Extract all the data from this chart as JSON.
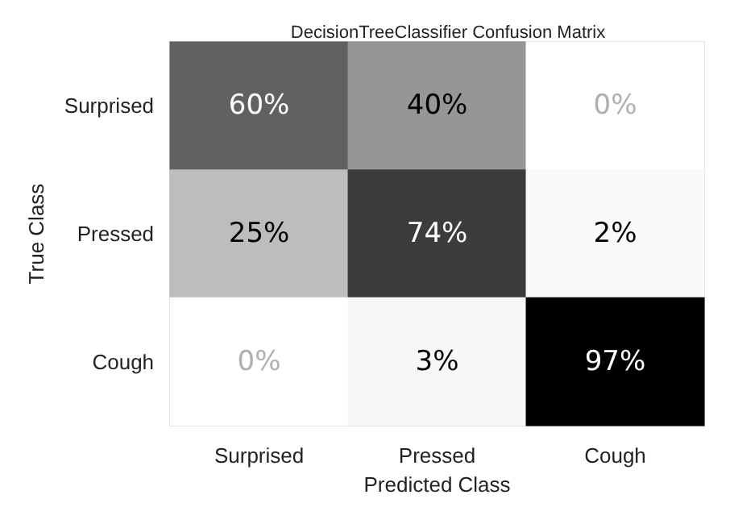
{
  "chart_data": {
    "type": "heatmap",
    "title": "DecisionTreeClassifier Confusion Matrix",
    "xlabel": "Predicted Class",
    "ylabel": "True Class",
    "categories": [
      "Surprised",
      "Pressed",
      "Cough"
    ],
    "y_categories": [
      "Surprised",
      "Pressed",
      "Cough"
    ],
    "cells": [
      [
        60,
        40,
        0
      ],
      [
        25,
        74,
        2
      ],
      [
        0,
        3,
        97
      ]
    ],
    "cell_labels": [
      [
        "60%",
        "40%",
        "0%"
      ],
      [
        "25%",
        "74%",
        "2%"
      ],
      [
        "0%",
        "3%",
        "97%"
      ]
    ]
  }
}
